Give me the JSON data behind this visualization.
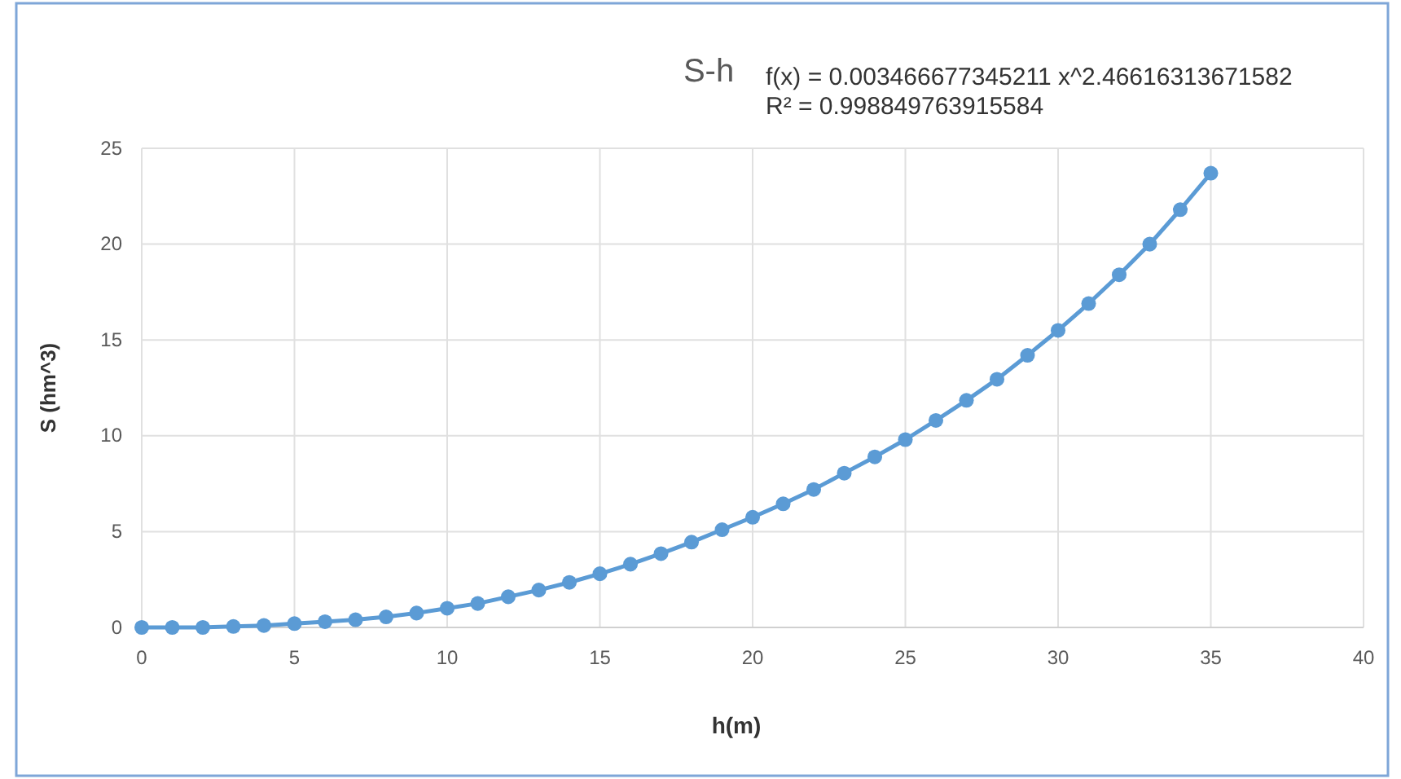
{
  "chart_data": {
    "type": "line",
    "title": "S-h",
    "xlabel": "h(m)",
    "ylabel": "S (hm^3)",
    "annotations": [
      "f(x) = 0.003466677345211 x^2.46616313671582",
      "R² = 0.998849763915584"
    ],
    "x": [
      0,
      1,
      2,
      3,
      4,
      5,
      6,
      7,
      8,
      9,
      10,
      11,
      12,
      13,
      14,
      15,
      16,
      17,
      18,
      19,
      20,
      21,
      22,
      23,
      24,
      25,
      26,
      27,
      28,
      29,
      30,
      31,
      32,
      33,
      34,
      35
    ],
    "series": [
      {
        "color": "#5b9bd5",
        "values": [
          0,
          0,
          0,
          0.05,
          0.1,
          0.2,
          0.3,
          0.4,
          0.55,
          0.75,
          1.0,
          1.25,
          1.6,
          1.95,
          2.35,
          2.8,
          3.3,
          3.85,
          4.45,
          5.1,
          5.75,
          6.45,
          7.2,
          8.05,
          8.9,
          9.8,
          10.8,
          11.85,
          12.95,
          14.2,
          15.5,
          16.9,
          18.4,
          20.0,
          21.8,
          23.7
        ]
      }
    ],
    "xlim": [
      0,
      40
    ],
    "xticks": [
      0,
      5,
      10,
      15,
      20,
      25,
      30,
      35,
      40
    ],
    "ylim": [
      0,
      25
    ],
    "yticks": [
      0,
      5,
      10,
      15,
      20,
      25
    ],
    "grid": true,
    "marker": "circle",
    "line_style": "solid"
  }
}
